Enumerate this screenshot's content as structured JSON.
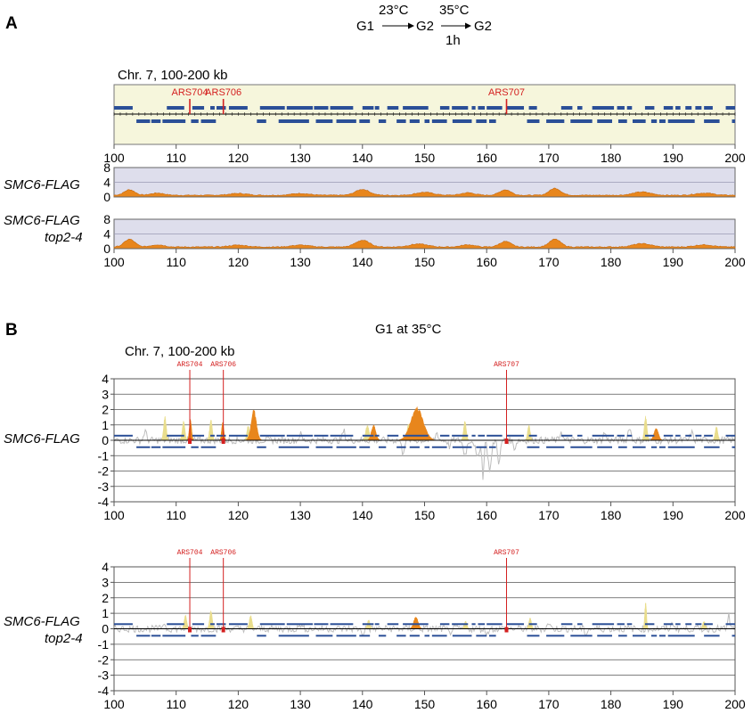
{
  "panel_a": {
    "label": "A",
    "scheme": {
      "g1": "G1",
      "g2a": "G2",
      "g2b": "G2",
      "temp1": "23°C",
      "temp2": "35°C",
      "time": "1h"
    },
    "region_label": "Chr. 7, 100-200 kb",
    "track_labels": [
      [
        "SMC6-FLAG"
      ],
      [
        "SMC6-FLAG",
        "top2-4"
      ]
    ]
  },
  "panel_b": {
    "label": "B",
    "condition": "G1 at 35°C",
    "region_label": "Chr. 7, 100-200 kb",
    "track_labels": [
      [
        "SMC6-FLAG"
      ],
      [
        "SMC6-FLAG",
        "top2-4"
      ]
    ]
  },
  "colors": {
    "ars": "#d42020",
    "gene": "#2b4f97",
    "signal": "#e8861c",
    "genome_bg": "#f6f6dc",
    "track_bg": "#dedeec",
    "trace_gray": "#bdbdbd",
    "trace_yellow": "#e9dd8c"
  },
  "chart_data": [
    {
      "type": "area",
      "name": "genome-annotation",
      "x_range": [
        100,
        200
      ],
      "xticks": [
        100,
        110,
        120,
        130,
        140,
        150,
        160,
        170,
        180,
        190,
        200
      ],
      "ars": [
        {
          "name": "ARS704",
          "x": 112.2
        },
        {
          "name": "ARS706",
          "x": 117.6
        },
        {
          "name": "ARS707",
          "x": 163.2
        }
      ],
      "genes_top": [
        [
          100,
          103
        ],
        [
          108.5,
          111.3
        ],
        [
          112.6,
          114.5
        ],
        [
          115.5,
          116.2
        ],
        [
          116.5,
          118
        ],
        [
          118.5,
          121.5
        ],
        [
          123.5,
          127.5
        ],
        [
          127.8,
          132
        ],
        [
          132.2,
          134.5
        ],
        [
          134.8,
          138.5
        ],
        [
          140,
          141.8
        ],
        [
          142,
          142.7
        ],
        [
          144,
          145.8
        ],
        [
          146.5,
          150.6
        ],
        [
          152.5,
          154
        ],
        [
          154.4,
          157
        ],
        [
          157.6,
          158.2
        ],
        [
          158.6,
          159.7
        ],
        [
          160,
          162.5
        ],
        [
          163.2,
          166
        ],
        [
          166.8,
          168.1
        ],
        [
          172,
          173.8
        ],
        [
          174.6,
          175.4
        ],
        [
          177,
          180.5
        ],
        [
          181,
          182.2
        ],
        [
          182.6,
          183.4
        ],
        [
          185.5,
          187
        ],
        [
          188.5,
          190
        ],
        [
          190.4,
          191.2
        ],
        [
          192,
          193
        ],
        [
          193.6,
          194.6
        ],
        [
          195,
          196.4
        ],
        [
          198.5,
          200
        ]
      ],
      "genes_bottom": [
        [
          103.6,
          105.8
        ],
        [
          106,
          107.5
        ],
        [
          107.8,
          111.5
        ],
        [
          112.4,
          113.6
        ],
        [
          114,
          116.4
        ],
        [
          123,
          124.5
        ],
        [
          126.5,
          131.4
        ],
        [
          132.5,
          135.2
        ],
        [
          135.8,
          139
        ],
        [
          139.5,
          141.2
        ],
        [
          142.6,
          143.8
        ],
        [
          145.5,
          147
        ],
        [
          147.6,
          149.2
        ],
        [
          150,
          150.8
        ],
        [
          151.2,
          153.6
        ],
        [
          154.5,
          157.6
        ],
        [
          158.3,
          160
        ],
        [
          160.4,
          161.5
        ],
        [
          166.5,
          168.5
        ],
        [
          169.6,
          172.5
        ],
        [
          173.5,
          177
        ],
        [
          177.8,
          180.2
        ],
        [
          181.2,
          182.6
        ],
        [
          183.5,
          185.6
        ],
        [
          186.5,
          187.4
        ],
        [
          187.8,
          188.8
        ],
        [
          189.2,
          193.5
        ],
        [
          195,
          197.5
        ],
        [
          199.5,
          200
        ]
      ]
    },
    {
      "type": "area",
      "series_label": "SMC6-FLAG",
      "x_range": [
        100,
        200
      ],
      "ylim": [
        0,
        8
      ],
      "yticks": [
        0,
        4,
        8
      ],
      "peaks": [
        [
          102.5,
          1.5,
          1.2
        ],
        [
          107,
          0.6,
          1.5
        ],
        [
          120,
          0.5,
          2
        ],
        [
          130,
          0.5,
          2
        ],
        [
          140,
          1.6,
          1.6
        ],
        [
          150,
          0.8,
          2
        ],
        [
          157,
          0.7,
          1.5
        ],
        [
          163,
          1.5,
          1.3
        ],
        [
          171,
          1.9,
          1.3
        ],
        [
          185,
          0.9,
          2
        ],
        [
          195,
          0.6,
          2
        ]
      ]
    },
    {
      "type": "area",
      "series_label": "SMC6-FLAG top2-4",
      "x_range": [
        100,
        200
      ],
      "ylim": [
        0,
        8
      ],
      "yticks": [
        0,
        4,
        8
      ],
      "peaks": [
        [
          102.5,
          2.1,
          1.2
        ],
        [
          107,
          0.6,
          1.5
        ],
        [
          120,
          0.5,
          2
        ],
        [
          130,
          0.5,
          2
        ],
        [
          140,
          1.8,
          1.6
        ],
        [
          149,
          0.8,
          2
        ],
        [
          157,
          0.6,
          1.5
        ],
        [
          163,
          1.5,
          1.3
        ],
        [
          171,
          2.1,
          1.3
        ],
        [
          185,
          0.9,
          2
        ],
        [
          195,
          0.6,
          2
        ]
      ]
    },
    {
      "type": "bar",
      "series_label": "SMC6-FLAG",
      "condition": "G1 at 35°C",
      "x_range": [
        100,
        200
      ],
      "ylim": [
        -4,
        4
      ],
      "yticks": [
        -4,
        -3,
        -2,
        -1,
        0,
        1,
        2,
        3,
        4
      ],
      "ars": [
        {
          "name": "ARS704",
          "x": 112.2
        },
        {
          "name": "ARS706",
          "x": 117.6
        },
        {
          "name": "ARS707",
          "x": 163.2
        }
      ],
      "orange_peaks": [
        [
          112.3,
          1.4,
          0.25
        ],
        [
          117.5,
          1.2,
          0.25
        ],
        [
          122.5,
          2.0,
          0.6
        ],
        [
          141.8,
          1.0,
          0.5
        ],
        [
          148.8,
          2.2,
          1.4
        ],
        [
          187.3,
          0.8,
          0.5
        ]
      ],
      "yellow_peaks": [
        [
          108.2,
          1.6,
          0.3
        ],
        [
          111.2,
          1.3,
          0.3
        ],
        [
          115.6,
          1.4,
          0.3
        ],
        [
          121.6,
          1.0,
          0.3
        ],
        [
          140.8,
          1.0,
          0.4
        ],
        [
          147.4,
          1.1,
          0.3
        ],
        [
          156.5,
          1.3,
          0.3
        ],
        [
          166.8,
          1.0,
          0.3
        ],
        [
          185.6,
          1.6,
          0.3
        ],
        [
          197,
          0.9,
          0.3
        ]
      ],
      "gray_dips": [
        [
          146.5,
          -0.8,
          0.3
        ],
        [
          154,
          -0.4,
          0.3
        ],
        [
          156.5,
          -0.9,
          0.4
        ],
        [
          158.5,
          -1.2,
          0.4
        ],
        [
          159.4,
          -2.6,
          0.2
        ],
        [
          160.5,
          -1.9,
          0.4
        ],
        [
          162,
          -1.5,
          0.3
        ],
        [
          164.5,
          -0.5,
          0.3
        ]
      ],
      "gray_peaks": [
        [
          105,
          0.6,
          0.3
        ],
        [
          130,
          0.4,
          0.3
        ],
        [
          137,
          0.6,
          0.3
        ],
        [
          152,
          0.5,
          0.3
        ],
        [
          172,
          0.6,
          0.3
        ],
        [
          179,
          0.5,
          0.3
        ],
        [
          183,
          0.9,
          0.3
        ],
        [
          193,
          0.5,
          0.3
        ]
      ],
      "genes_top": [
        [
          100,
          103
        ],
        [
          108.5,
          111.3
        ],
        [
          112.6,
          114.5
        ],
        [
          115.5,
          116.2
        ],
        [
          116.5,
          118
        ],
        [
          118.5,
          121.5
        ],
        [
          123.5,
          127.5
        ],
        [
          127.8,
          132
        ],
        [
          132.2,
          134.5
        ],
        [
          134.8,
          138.5
        ],
        [
          140,
          141.8
        ],
        [
          142,
          142.7
        ],
        [
          144,
          145.8
        ],
        [
          146.5,
          150.6
        ],
        [
          152.5,
          154
        ],
        [
          154.4,
          157
        ],
        [
          157.6,
          158.2
        ],
        [
          158.6,
          159.7
        ],
        [
          160,
          162.5
        ],
        [
          163.2,
          166
        ],
        [
          166.8,
          168.1
        ],
        [
          172,
          173.8
        ],
        [
          174.6,
          175.4
        ],
        [
          177,
          180.5
        ],
        [
          181,
          182.2
        ],
        [
          182.6,
          183.4
        ],
        [
          185.5,
          187
        ],
        [
          188.5,
          190
        ],
        [
          190.4,
          191.2
        ],
        [
          192,
          193
        ],
        [
          193.6,
          194.6
        ],
        [
          195,
          196.4
        ],
        [
          198.5,
          200
        ]
      ],
      "genes_bottom": [
        [
          103.6,
          105.8
        ],
        [
          106,
          107.5
        ],
        [
          107.8,
          111.5
        ],
        [
          112.4,
          113.6
        ],
        [
          114,
          116.4
        ],
        [
          123,
          124.5
        ],
        [
          126.5,
          131.4
        ],
        [
          132.5,
          135.2
        ],
        [
          135.8,
          139
        ],
        [
          139.5,
          141.2
        ],
        [
          142.6,
          143.8
        ],
        [
          145.5,
          147
        ],
        [
          147.6,
          149.2
        ],
        [
          150,
          150.8
        ],
        [
          151.2,
          153.6
        ],
        [
          154.5,
          157.6
        ],
        [
          158.3,
          160
        ],
        [
          160.4,
          161.5
        ],
        [
          166.5,
          168.5
        ],
        [
          169.6,
          172.5
        ],
        [
          173.5,
          177
        ],
        [
          177.8,
          180.2
        ],
        [
          181.2,
          182.6
        ],
        [
          183.5,
          185.6
        ],
        [
          186.5,
          187.4
        ],
        [
          187.8,
          188.8
        ],
        [
          189.2,
          193.5
        ],
        [
          195,
          197.5
        ],
        [
          199.5,
          200
        ]
      ]
    },
    {
      "type": "bar",
      "series_label": "SMC6-FLAG top2-4",
      "x_range": [
        100,
        200
      ],
      "ylim": [
        -4,
        4
      ],
      "yticks": [
        -4,
        -3,
        -2,
        -1,
        0,
        1,
        2,
        3,
        4
      ],
      "ars": [
        {
          "name": "ARS704",
          "x": 112.2
        },
        {
          "name": "ARS706",
          "x": 117.6
        },
        {
          "name": "ARS707",
          "x": 163.2
        }
      ],
      "orange_peaks": [
        [
          148.6,
          0.8,
          0.5
        ]
      ],
      "yellow_peaks": [
        [
          111.5,
          0.9,
          0.3
        ],
        [
          115.6,
          1.2,
          0.3
        ],
        [
          122,
          0.9,
          0.3
        ],
        [
          141,
          0.6,
          0.3
        ],
        [
          156.6,
          0.5,
          0.3
        ],
        [
          167,
          0.7,
          0.3
        ],
        [
          185.6,
          1.8,
          0.2
        ],
        [
          195,
          0.5,
          0.3
        ]
      ],
      "gray_dips": [
        [
          140,
          -0.3,
          0.3
        ],
        [
          154,
          -0.3,
          0.3
        ],
        [
          160,
          -0.3,
          0.3
        ],
        [
          176,
          -0.3,
          0.3
        ]
      ],
      "gray_peaks": [
        [
          108,
          0.4,
          0.3
        ],
        [
          130,
          0.3,
          0.3
        ],
        [
          170,
          0.4,
          0.3
        ],
        [
          190,
          0.4,
          0.3
        ],
        [
          199,
          0.9,
          0.2
        ]
      ],
      "genes_top": [
        [
          100,
          103
        ],
        [
          108.5,
          111.3
        ],
        [
          112.6,
          114.5
        ],
        [
          115.5,
          116.2
        ],
        [
          116.5,
          118
        ],
        [
          118.5,
          121.5
        ],
        [
          123.5,
          127.5
        ],
        [
          127.8,
          132
        ],
        [
          132.2,
          134.5
        ],
        [
          134.8,
          138.5
        ],
        [
          140,
          141.8
        ],
        [
          142,
          142.7
        ],
        [
          144,
          145.8
        ],
        [
          146.5,
          150.6
        ],
        [
          152.5,
          154
        ],
        [
          154.4,
          157
        ],
        [
          157.6,
          158.2
        ],
        [
          158.6,
          159.7
        ],
        [
          160,
          162.5
        ],
        [
          163.2,
          166
        ],
        [
          166.8,
          168.1
        ],
        [
          172,
          173.8
        ],
        [
          174.6,
          175.4
        ],
        [
          177,
          180.5
        ],
        [
          181,
          182.2
        ],
        [
          182.6,
          183.4
        ],
        [
          185.5,
          187
        ],
        [
          188.5,
          190
        ],
        [
          190.4,
          191.2
        ],
        [
          192,
          193
        ],
        [
          193.6,
          194.6
        ],
        [
          195,
          196.4
        ],
        [
          198.5,
          200
        ]
      ],
      "genes_bottom": [
        [
          103.6,
          105.8
        ],
        [
          106,
          107.5
        ],
        [
          107.8,
          111.5
        ],
        [
          112.4,
          113.6
        ],
        [
          114,
          116.4
        ],
        [
          123,
          124.5
        ],
        [
          126.5,
          131.4
        ],
        [
          132.5,
          135.2
        ],
        [
          135.8,
          139
        ],
        [
          139.5,
          141.2
        ],
        [
          142.6,
          143.8
        ],
        [
          145.5,
          147
        ],
        [
          147.6,
          149.2
        ],
        [
          150,
          150.8
        ],
        [
          151.2,
          153.6
        ],
        [
          154.5,
          157.6
        ],
        [
          158.3,
          160
        ],
        [
          160.4,
          161.5
        ],
        [
          166.5,
          168.5
        ],
        [
          169.6,
          172.5
        ],
        [
          173.5,
          177
        ],
        [
          177.8,
          180.2
        ],
        [
          181.2,
          182.6
        ],
        [
          183.5,
          185.6
        ],
        [
          186.5,
          187.4
        ],
        [
          187.8,
          188.8
        ],
        [
          189.2,
          193.5
        ],
        [
          195,
          197.5
        ],
        [
          199.5,
          200
        ]
      ]
    }
  ]
}
